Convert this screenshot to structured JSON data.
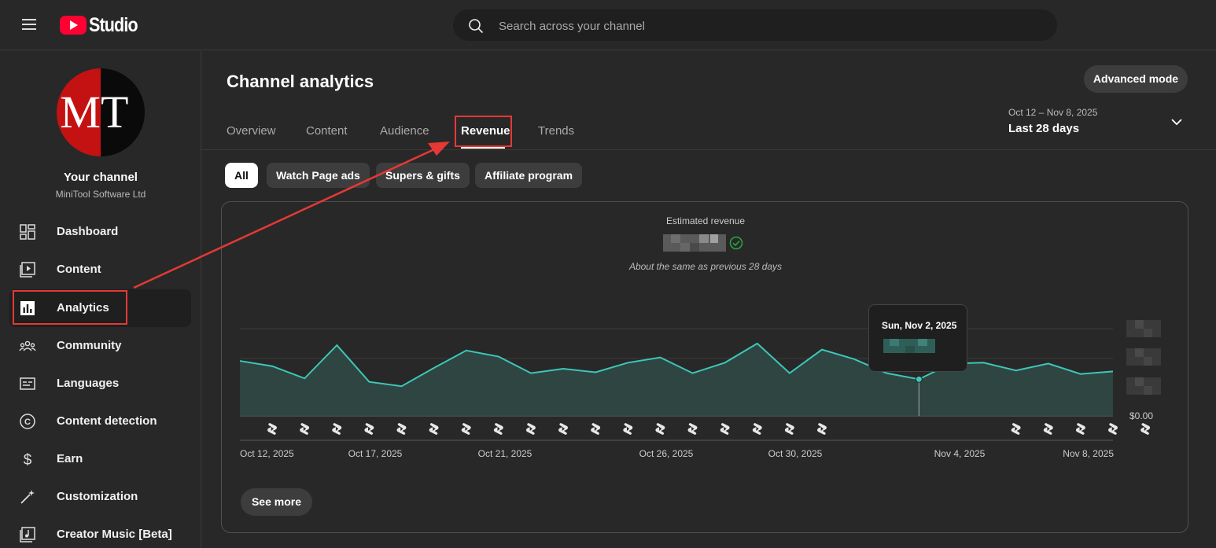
{
  "app": {
    "brand": "Studio",
    "search_placeholder": "Search across your channel"
  },
  "sidebar": {
    "channel_title": "Your channel",
    "channel_name": "MiniTool Software Ltd",
    "avatar_letters": [
      "M",
      "T"
    ],
    "items": [
      {
        "label": "Dashboard",
        "icon": "dashboard-icon"
      },
      {
        "label": "Content",
        "icon": "content-icon"
      },
      {
        "label": "Analytics",
        "icon": "analytics-icon",
        "active": true
      },
      {
        "label": "Community",
        "icon": "community-icon"
      },
      {
        "label": "Languages",
        "icon": "languages-icon"
      },
      {
        "label": "Content detection",
        "icon": "copyright-icon"
      },
      {
        "label": "Earn",
        "icon": "dollar-icon"
      },
      {
        "label": "Customization",
        "icon": "magic-wand-icon"
      },
      {
        "label": "Creator Music [Beta]",
        "icon": "music-icon"
      }
    ]
  },
  "main": {
    "title": "Channel analytics",
    "advanced_mode": "Advanced mode",
    "tabs": [
      {
        "label": "Overview"
      },
      {
        "label": "Content"
      },
      {
        "label": "Audience"
      },
      {
        "label": "Revenue",
        "active": true
      },
      {
        "label": "Trends"
      }
    ],
    "date_range": "Oct 12 – Nov 8, 2025",
    "date_label": "Last 28 days",
    "chips": [
      {
        "label": "All",
        "active": true
      },
      {
        "label": "Watch Page ads"
      },
      {
        "label": "Supers & gifts"
      },
      {
        "label": "Affiliate program"
      }
    ],
    "metric": {
      "title": "Estimated revenue",
      "note": "About the same as previous 28 days"
    },
    "see_more": "See more",
    "tooltip_date": "Sun, Nov 2, 2025"
  },
  "colors": {
    "accent_line": "#3ec6b8",
    "highlight_red": "#e53935",
    "brand_red": "#ff0033",
    "check_green": "#2ba640"
  },
  "chart_data": {
    "type": "area",
    "x": [
      "Oct 12, 2025",
      "Oct 13, 2025",
      "Oct 14, 2025",
      "Oct 15, 2025",
      "Oct 16, 2025",
      "Oct 17, 2025",
      "Oct 18, 2025",
      "Oct 19, 2025",
      "Oct 20, 2025",
      "Oct 21, 2025",
      "Oct 22, 2025",
      "Oct 23, 2025",
      "Oct 24, 2025",
      "Oct 25, 2025",
      "Oct 26, 2025",
      "Oct 27, 2025",
      "Oct 28, 2025",
      "Oct 29, 2025",
      "Oct 30, 2025",
      "Oct 31, 2025",
      "Nov 1, 2025",
      "Nov 2, 2025",
      "Nov 3, 2025",
      "Nov 4, 2025",
      "Nov 5, 2025",
      "Nov 6, 2025",
      "Nov 7, 2025",
      "Nov 8, 2025"
    ],
    "values": [
      0.63,
      0.57,
      0.43,
      0.81,
      0.39,
      0.34,
      0.55,
      0.75,
      0.68,
      0.49,
      0.54,
      0.5,
      0.61,
      0.67,
      0.49,
      0.61,
      0.83,
      0.49,
      0.76,
      0.65,
      0.49,
      0.42,
      0.6,
      0.61,
      0.52,
      0.6,
      0.48,
      0.51
    ],
    "x_tick_labels": [
      "Oct 12, 2025",
      "Oct 17, 2025",
      "Oct 21, 2025",
      "Oct 26, 2025",
      "Oct 30, 2025",
      "Nov 4, 2025",
      "Nov 8, 2025"
    ],
    "y_tick_labels": [
      "$0.00"
    ],
    "shorts_marker_days": [
      0,
      1,
      2,
      3,
      4,
      5,
      6,
      7,
      8,
      9,
      10,
      11,
      12,
      13,
      14,
      15,
      16,
      17,
      23,
      24,
      25,
      26,
      27
    ],
    "highlighted_index": 21,
    "note": ""
  }
}
